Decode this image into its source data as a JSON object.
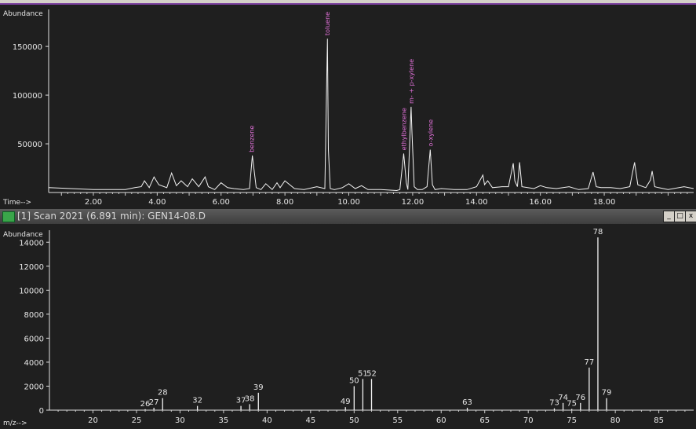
{
  "tic": {
    "ylabel": "Abundance",
    "xlabel": "Time-->",
    "yticks": [
      "150000",
      "100000",
      "50000"
    ],
    "xticks": [
      "2.00",
      "4.00",
      "6.00",
      "8.00",
      "10.00",
      "12.00",
      "14.00",
      "16.00",
      "18.00"
    ],
    "peak_labels": [
      "benzene",
      "toluene",
      "ethylbenzene",
      "m- + p-xylene",
      "o-xylene"
    ]
  },
  "window": {
    "title": "[1] Scan 2021 (6.891 min): GEN14-08.D",
    "min": "_",
    "max": "□",
    "close": "x"
  },
  "spectrum": {
    "ylabel": "Abundance",
    "xlabel": "m/z-->",
    "yticks": [
      "14000",
      "12000",
      "10000",
      "8000",
      "6000",
      "4000",
      "2000",
      "0"
    ],
    "xticks": [
      "20",
      "25",
      "30",
      "35",
      "40",
      "45",
      "50",
      "55",
      "60",
      "65",
      "70",
      "75",
      "80",
      "85"
    ]
  },
  "chart_data": [
    {
      "type": "line",
      "x": [
        0.6,
        2.0,
        3.0,
        3.3,
        3.5,
        3.6,
        3.75,
        3.9,
        4.05,
        4.3,
        4.45,
        4.6,
        4.75,
        4.95,
        5.1,
        5.3,
        5.5,
        5.6,
        5.8,
        6.0,
        6.2,
        6.4,
        6.7,
        6.89,
        6.98,
        7.1,
        7.25,
        7.4,
        7.6,
        7.75,
        7.85,
        8.0,
        8.3,
        8.6,
        9.0,
        9.25,
        9.33,
        9.36,
        9.42,
        9.55,
        9.8,
        10.0,
        10.2,
        10.4,
        10.6,
        11.0,
        11.5,
        11.6,
        11.72,
        11.8,
        11.85,
        11.95,
        11.98,
        12.05,
        12.15,
        12.3,
        12.45,
        12.55,
        12.62,
        12.7,
        12.9,
        13.3,
        13.7,
        14.0,
        14.2,
        14.25,
        14.35,
        14.5,
        14.8,
        15.0,
        15.15,
        15.2,
        15.28,
        15.35,
        15.42,
        15.6,
        15.8,
        16.0,
        16.2,
        16.5,
        16.9,
        17.2,
        17.5,
        17.65,
        17.75,
        17.9,
        18.2,
        18.5,
        18.8,
        18.95,
        19.05,
        19.3,
        19.45,
        19.5,
        19.58,
        19.7,
        20.0,
        20.5,
        20.8
      ],
      "y": [
        5000,
        3000,
        3000,
        5000,
        6000,
        12000,
        5000,
        16000,
        8000,
        5000,
        20000,
        7000,
        12000,
        6000,
        14000,
        6000,
        16000,
        6000,
        3000,
        10000,
        5000,
        4000,
        3000,
        4000,
        38000,
        5000,
        3000,
        9000,
        3000,
        10000,
        5000,
        12000,
        4000,
        3000,
        6000,
        4000,
        158000,
        44000,
        4000,
        3000,
        5000,
        9000,
        4000,
        7000,
        3000,
        3000,
        2000,
        3000,
        40000,
        10000,
        3000,
        88000,
        60000,
        6000,
        3000,
        3000,
        6000,
        44000,
        8000,
        3000,
        4000,
        3000,
        3000,
        6000,
        18000,
        8000,
        12000,
        5000,
        6000,
        6000,
        30000,
        12000,
        6000,
        31000,
        6000,
        5000,
        4000,
        7000,
        5000,
        4000,
        6000,
        3000,
        4000,
        21000,
        6000,
        5000,
        5000,
        4000,
        6000,
        31000,
        8000,
        5000,
        13000,
        22000,
        6000,
        5000,
        3000,
        6000,
        4000
      ],
      "xlim": [
        0.6,
        20.8
      ],
      "ylim": [
        0,
        188000
      ],
      "xlabel": "Time-->",
      "ylabel": "Abundance",
      "annotations": [
        {
          "text": "benzene",
          "x": 6.95,
          "y": 38000
        },
        {
          "text": "toluene",
          "x": 9.33,
          "y": 158000
        },
        {
          "text": "ethylbenzene",
          "x": 11.72,
          "y": 40000
        },
        {
          "text": "m- + p-xylene",
          "x": 11.95,
          "y": 88000
        },
        {
          "text": "o-xylene",
          "x": 12.55,
          "y": 44000
        }
      ]
    },
    {
      "type": "bar",
      "title": "[1] Scan 2021 (6.891 min): GEN14-08.D",
      "x": [
        26,
        27,
        28,
        32,
        37,
        38,
        39,
        49,
        50,
        51,
        52,
        63,
        73,
        74,
        75,
        76,
        77,
        78,
        79
      ],
      "values": [
        80,
        200,
        1000,
        350,
        350,
        500,
        1450,
        250,
        2000,
        2600,
        2600,
        200,
        150,
        600,
        100,
        600,
        3550,
        14400,
        1000
      ],
      "labels": [
        "26",
        "27",
        "28",
        "32",
        "37",
        "38",
        "39",
        "49",
        "50",
        "51",
        "52",
        "63",
        "73",
        "74",
        "75",
        "76",
        "77",
        "78",
        "79"
      ],
      "xlim": [
        15,
        89
      ],
      "ylim": [
        0,
        15000
      ],
      "xlabel": "m/z-->",
      "ylabel": "Abundance"
    }
  ]
}
